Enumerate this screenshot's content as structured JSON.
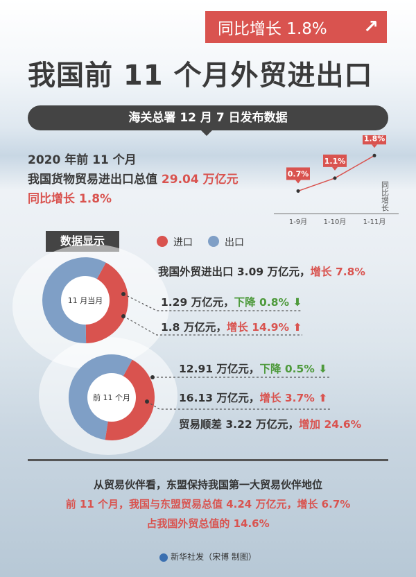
{
  "badge": {
    "text": "同比增长 1.8%",
    "icon": "up-arrow-icon"
  },
  "title": "我国前 11 个月外贸进出口",
  "banner": "海关总署 12 月 7 日发布数据",
  "summary": {
    "line1": "2020 年前 11 个月",
    "line2_prefix": "我国货物贸易进出口总值 ",
    "line2_value": "29.04 万亿元",
    "line3": "同比增长 1.8%"
  },
  "chart_data": [
    {
      "type": "line",
      "x": [
        "1-9月",
        "1-10月",
        "1-11月"
      ],
      "series": [
        {
          "values": [
            0.7,
            1.1,
            1.8
          ]
        }
      ],
      "data_labels": [
        "0.7%",
        "1.1%",
        "1.8%"
      ],
      "ylabel": "同比增长",
      "ylim": [
        0,
        2
      ]
    },
    {
      "type": "pie",
      "center_label": "11 月当月",
      "slices": [
        {
          "name": "进口",
          "value": 1.29,
          "color": "#d9534f"
        },
        {
          "name": "出口",
          "value": 1.8,
          "color": "#7f9fc6"
        }
      ]
    },
    {
      "type": "pie",
      "center_label": "前 11 个月",
      "slices": [
        {
          "name": "进口",
          "value": 12.91,
          "color": "#d9534f"
        },
        {
          "name": "出口",
          "value": 16.13,
          "color": "#7f9fc6"
        }
      ]
    }
  ],
  "section_tag": "数据显示",
  "legend": [
    {
      "label": "进口",
      "color": "#d9534f"
    },
    {
      "label": "出口",
      "color": "#7f9fc6"
    }
  ],
  "month": {
    "total_prefix": "我国外贸进出口 3.09 万亿元，",
    "total_change": "增长 7.8%",
    "import_value": "1.29 万亿元，",
    "import_change": "下降 0.8%",
    "export_value": "1.8 万亿元，",
    "export_change": "增长 14.9%"
  },
  "ytd": {
    "import_value": "12.91 万亿元，",
    "import_change": "下降 0.5%",
    "export_value": "16.13 万亿元，",
    "export_change": "增长 3.7%",
    "surplus_prefix": "贸易顺差 3.22 万亿元，",
    "surplus_change": "增加 24.6%"
  },
  "footer": {
    "line1": "从贸易伙伴看，东盟保持我国第一大贸易伙伴地位",
    "line2": "前 11 个月，我国与东盟贸易总值 4.24 万亿元，增长 6.7%",
    "line3": "占我国外贸总值的 14.6%",
    "credit": "新华社发（宋博 制图）"
  }
}
